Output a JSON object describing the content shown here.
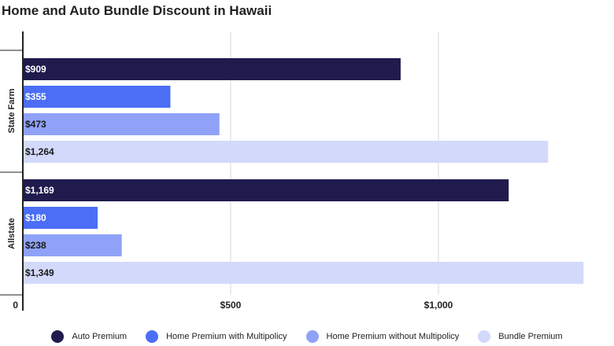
{
  "title": "Home and Auto Bundle Discount in Hawaii",
  "chart_data": {
    "type": "bar",
    "orientation": "horizontal",
    "title": "Home and Auto Bundle Discount in Hawaii",
    "xlabel": "",
    "ylabel": "",
    "xlim": [
      0,
      1400
    ],
    "grid": true,
    "legend_position": "bottom",
    "x_ticks": [
      {
        "value": 0,
        "label": "0"
      },
      {
        "value": 500,
        "label": "$500"
      },
      {
        "value": 1000,
        "label": "$1,000"
      }
    ],
    "categories": [
      "State Farm",
      "Allstate"
    ],
    "series": [
      {
        "name": "Auto Premium",
        "color": "#1f1b4d",
        "values": [
          909,
          1169
        ],
        "labels": [
          "$909",
          "$1,169"
        ],
        "label_color": "#ffffff"
      },
      {
        "name": "Home Premium with Multipolicy",
        "color": "#4b6ef5",
        "values": [
          355,
          180
        ],
        "labels": [
          "$355",
          "$180"
        ],
        "label_color": "#ffffff"
      },
      {
        "name": "Home Premium without Multipolicy",
        "color": "#8fa2f7",
        "values": [
          473,
          238
        ],
        "labels": [
          "$473",
          "$238"
        ],
        "label_color": "#1a1a1a"
      },
      {
        "name": "Bundle Premium",
        "color": "#d3d9fb",
        "values": [
          1264,
          1349
        ],
        "labels": [
          "$1,264",
          "$1,349"
        ],
        "label_color": "#1a1a1a"
      }
    ]
  }
}
